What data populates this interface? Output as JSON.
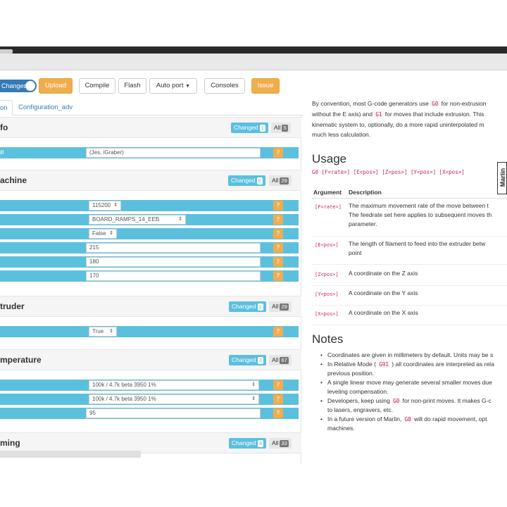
{
  "toolbar": {
    "toggle_label": "Changed",
    "upload": "Upload",
    "compile": "Compile",
    "flash": "Flash",
    "port": "Auto port",
    "consoles": "Consoles",
    "issue": "Issue"
  },
  "tabs": [
    "on",
    "Configuration_adv"
  ],
  "sections": [
    {
      "title": "fo",
      "changed_label": "Changed",
      "changed_count": "1",
      "all_label": "All",
      "all_count": "5",
      "rows": [
        {
          "label": "ill",
          "value": "(Jes, iGraber)"
        }
      ]
    },
    {
      "title": "achine",
      "changed_label": "Changed",
      "changed_count": "6",
      "all_label": "All",
      "all_count": "29",
      "rows": [
        {
          "value": "115200"
        },
        {
          "value": "BOARD_RAMPS_14_EEB"
        },
        {
          "value": "False"
        },
        {
          "value": "215"
        },
        {
          "value": "180"
        },
        {
          "value": "170"
        }
      ]
    },
    {
      "title": "truder",
      "changed_label": "Changed",
      "changed_count": "1",
      "all_label": "All",
      "all_count": "29",
      "rows": [
        {
          "value": "True"
        }
      ]
    },
    {
      "title": "mperature",
      "changed_label": "Changed",
      "changed_count": "3",
      "all_label": "All",
      "all_count": "67",
      "rows": [
        {
          "value": "100k / 4.7k beta 3950 1%"
        },
        {
          "value": "100k / 4.7k beta 3950 1%"
        },
        {
          "value": "95"
        }
      ]
    },
    {
      "title": "ming",
      "changed_label": "Changed",
      "changed_count": "4",
      "all_label": "All",
      "all_count": "33"
    }
  ],
  "help_glyph": "?",
  "doc": {
    "intro_1a": "By convention, most G-code generators use",
    "intro_g0": "G0",
    "intro_1b": "for non-extrusion",
    "intro_2a": "without the E axis) and",
    "intro_g1": "G1",
    "intro_2b": "for moves that include extrusion. This",
    "intro_3": "kinematic system to, optionally, do a more rapid uninterpolated m",
    "intro_4": "much less calculation.",
    "usage_title": "Usage",
    "usage_code": "G0 [F<rate>] [E<pos>] [Z<pos>] [Y<pos>] [X<pos>]",
    "logo_text": "Marlin",
    "arg_header": "Argument",
    "desc_header": "Description",
    "args": [
      {
        "name": "[F<rate>]",
        "desc": [
          "The maximum movement rate of the move between t",
          "The feedrate set here applies to subsequent moves th",
          "parameter."
        ]
      },
      {
        "name": "[E<pos>]",
        "desc": [
          "The length of filament to feed into the extruder betw",
          "point"
        ]
      },
      {
        "name": "[Z<pos>]",
        "desc": [
          "A coordinate on the Z axis"
        ]
      },
      {
        "name": "[Y<pos>]",
        "desc": [
          "A coordinate on the Y axis"
        ]
      },
      {
        "name": "[X<pos>]",
        "desc": [
          "A coordinate on the X axis"
        ]
      }
    ],
    "notes_title": "Notes",
    "notes": [
      {
        "a": "Coordinates are given in millimeters by default. Units may be s"
      },
      {
        "a": "In Relative Mode (",
        "code": "G91",
        "b": ") all coordinates are interpreted as rela",
        "c": "previous position."
      },
      {
        "a": "A single linear move may generate several smaller moves due",
        "c": "leveling compensation."
      },
      {
        "a": "Developers, keep using",
        "code": "G0",
        "b": "for non-print moves. It makes G-c",
        "c": "to lasers, engravers, etc."
      },
      {
        "a": "In a future version of Marlin,",
        "code": "G0",
        "b": "will do rapid movement, opt",
        "c": "machines."
      }
    ]
  }
}
